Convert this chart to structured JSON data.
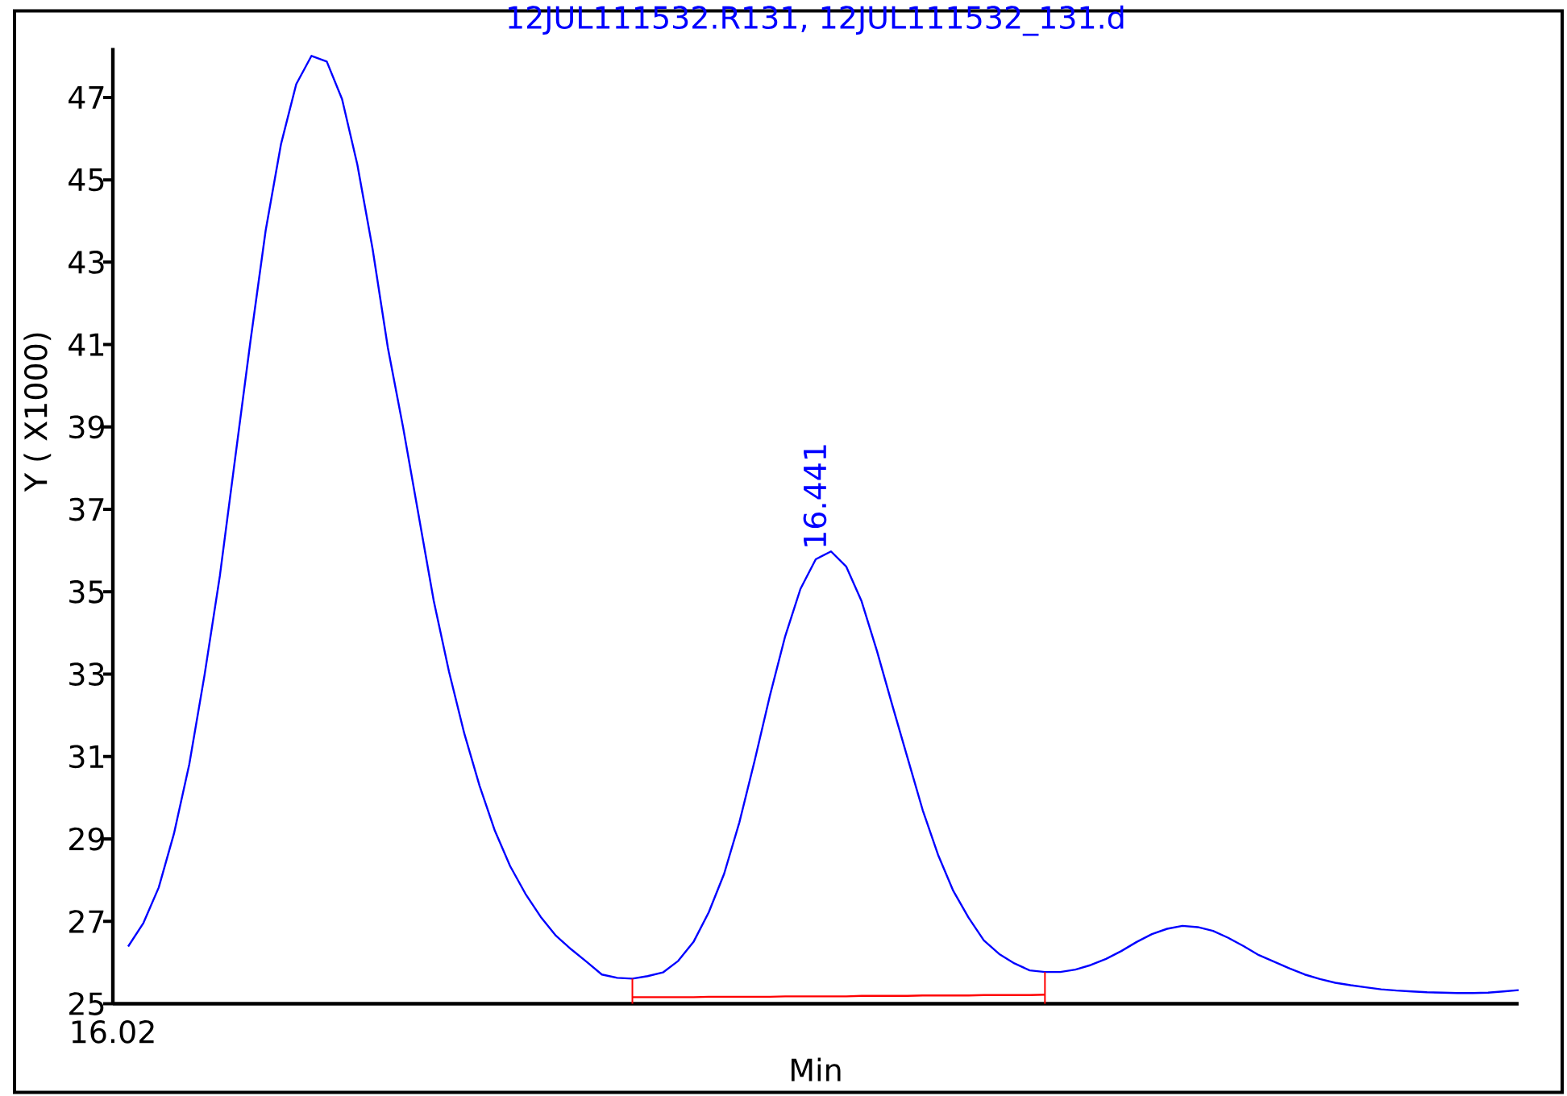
{
  "chart_data": {
    "type": "line",
    "title": "12JUL111532.R131, 12JUL111532_131.d",
    "xlabel": "Min",
    "ylabel": "Y ( X1000)",
    "categories": [
      null,
      null,
      null,
      null,
      null,
      null,
      null,
      null,
      null,
      null,
      null,
      null,
      null,
      null,
      null,
      null,
      null,
      null,
      null,
      null,
      null,
      null,
      null,
      null,
      null,
      null,
      null,
      null,
      null,
      null,
      null,
      null,
      null,
      null,
      null,
      null,
      null,
      null,
      null,
      null,
      null,
      null,
      null,
      null,
      null,
      null,
      null,
      null,
      null,
      null,
      null,
      null,
      null,
      null,
      null,
      null,
      null,
      null,
      null,
      null,
      null,
      null,
      null,
      null,
      null,
      null,
      null,
      null,
      null,
      null,
      null,
      null,
      null,
      null,
      null,
      null,
      null,
      null,
      null,
      null,
      null,
      null,
      null,
      null,
      null,
      null,
      null,
      null,
      null,
      null,
      null,
      null
    ],
    "ylim": [
      25,
      48.2
    ],
    "yticks": [
      25,
      27,
      29,
      31,
      33,
      35,
      37,
      39,
      41,
      43,
      45,
      47
    ],
    "grid": false,
    "legend": false,
    "marker": "none",
    "line_style": "solid",
    "annotations": [
      {
        "text": "16.441",
        "y": 35.98
      },
      "16.02"
    ],
    "series": [
      {
        "color": "#0000ff",
        "values": [
          26.39,
          26.96,
          27.82,
          29.13,
          30.81,
          32.98,
          35.38,
          38.23,
          41.07,
          43.77,
          45.86,
          47.32,
          48.01,
          47.87,
          46.96,
          45.37,
          43.32,
          40.92,
          38.98,
          36.88,
          34.78,
          33.06,
          31.56,
          30.29,
          29.2,
          28.34,
          27.67,
          27.11,
          26.65,
          26.32,
          26.02,
          25.71,
          25.63,
          25.61,
          25.67,
          25.76,
          26.04,
          26.5,
          27.22,
          28.15,
          29.4,
          30.9,
          32.48,
          33.92,
          35.07,
          35.79,
          35.98,
          35.61,
          34.77,
          33.57,
          32.26,
          30.98,
          29.7,
          28.62,
          27.74,
          27.09,
          26.54,
          26.21,
          25.98,
          25.81,
          25.77,
          25.77,
          25.83,
          25.94,
          26.09,
          26.28,
          26.5,
          26.69,
          26.82,
          26.89,
          26.86,
          26.77,
          26.6,
          26.4,
          26.18,
          26.02,
          25.86,
          25.71,
          25.6,
          25.51,
          25.45,
          25.4,
          25.35,
          25.32,
          25.3,
          25.28,
          25.27,
          25.26,
          25.26,
          25.27,
          25.3,
          25.33
        ]
      },
      {
        "color": "#ff0000",
        "values": [
          null,
          null,
          null,
          null,
          null,
          null,
          null,
          null,
          null,
          null,
          null,
          null,
          null,
          null,
          null,
          null,
          null,
          null,
          null,
          null,
          null,
          null,
          null,
          null,
          null,
          null,
          null,
          null,
          null,
          null,
          null,
          null,
          null,
          25.16,
          25.16,
          25.16,
          25.16,
          25.16,
          25.17,
          25.17,
          25.17,
          25.17,
          25.17,
          25.18,
          25.18,
          25.18,
          25.18,
          25.18,
          25.19,
          25.19,
          25.19,
          25.19,
          25.2,
          25.2,
          25.2,
          25.2,
          25.21,
          25.21,
          25.21,
          25.21,
          25.22,
          null,
          null,
          null,
          null,
          null,
          null,
          null,
          null,
          null,
          null,
          null,
          null,
          null,
          null,
          null,
          null,
          null,
          null,
          null,
          null,
          null,
          null,
          null,
          null,
          null,
          null,
          null,
          null,
          null,
          null,
          null
        ],
        "errors": [
          null,
          null,
          null,
          null,
          null,
          null,
          null,
          null,
          null,
          null,
          null,
          null,
          null,
          null,
          null,
          null,
          null,
          null,
          null,
          null,
          null,
          null,
          null,
          null,
          null,
          null,
          null,
          null,
          null,
          null,
          null,
          null,
          null,
          [
            25,
            25.61
          ],
          null,
          null,
          null,
          null,
          null,
          null,
          null,
          null,
          null,
          null,
          null,
          null,
          null,
          null,
          null,
          null,
          null,
          null,
          null,
          null,
          null,
          null,
          null,
          null,
          null,
          null,
          [
            25,
            25.77
          ],
          null,
          null,
          null,
          null,
          null,
          null,
          null,
          null,
          null,
          null,
          null,
          null,
          null,
          null,
          null,
          null,
          null,
          null,
          null,
          null,
          null,
          null,
          null,
          null,
          null,
          null,
          null,
          null,
          null,
          null,
          null
        ]
      }
    ]
  }
}
